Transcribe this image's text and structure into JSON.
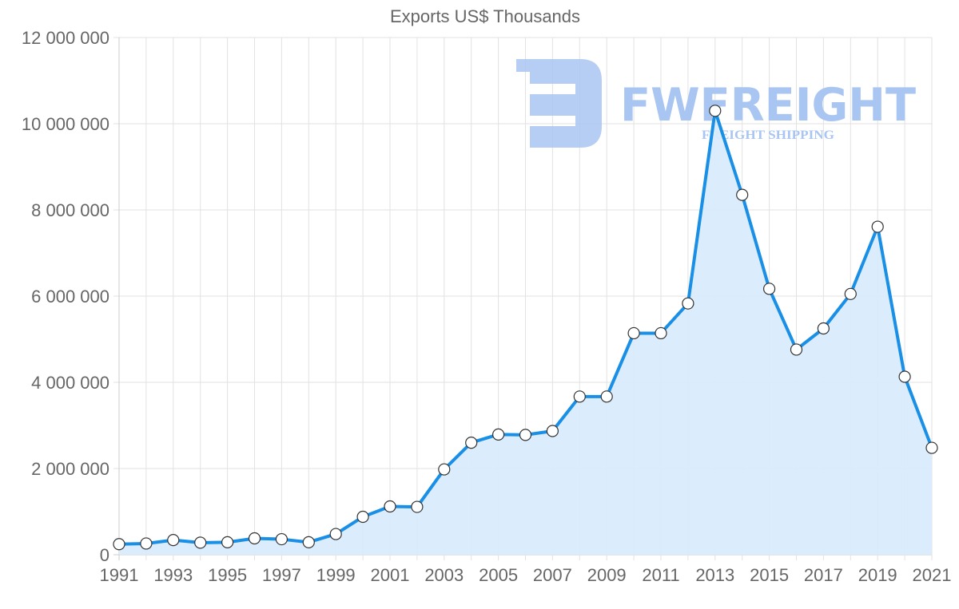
{
  "title": "Exports US$ Thousands",
  "watermark": {
    "brand": "FWFREIGHT",
    "tagline": "FREIGHT SHIPPING",
    "color": "#a9c5f1"
  },
  "colors": {
    "line": "#1a8fe6",
    "fill": "#d9ecfc",
    "grid": "#e2e2e2",
    "axis": "#cccccc",
    "tick_text": "#666666",
    "point_fill": "#ffffff",
    "point_stroke": "#333333"
  },
  "chart_data": {
    "type": "area",
    "title": "Exports US$ Thousands",
    "xlabel": "",
    "ylabel": "",
    "ylim": [
      0,
      12000000
    ],
    "y_ticks": [
      0,
      2000000,
      4000000,
      6000000,
      8000000,
      10000000,
      12000000
    ],
    "y_tick_labels": [
      "0",
      "2 000 000",
      "4 000 000",
      "6 000 000",
      "8 000 000",
      "10 000 000",
      "12 000 000"
    ],
    "x_tick_labels": [
      "1991",
      "1993",
      "1995",
      "1997",
      "1999",
      "2001",
      "2003",
      "2005",
      "2007",
      "2009",
      "2011",
      "2013",
      "2015",
      "2017",
      "2019",
      "2021"
    ],
    "grid": true,
    "legend": "none",
    "categories": [
      "1991",
      "1992",
      "1993",
      "1994",
      "1995",
      "1996",
      "1997",
      "1998",
      "1999",
      "2000",
      "2001",
      "2002",
      "2003",
      "2004",
      "2005",
      "2006",
      "2007",
      "2008",
      "2009",
      "2010",
      "2011",
      "2012",
      "2013",
      "2014",
      "2015",
      "2016",
      "2017",
      "2018",
      "2019",
      "2020",
      "2021"
    ],
    "series": [
      {
        "name": "Exports US$ Thousands",
        "values": [
          246000,
          260000,
          340000,
          280000,
          290000,
          380000,
          360000,
          290000,
          480000,
          880000,
          1120000,
          1110000,
          1980000,
          2600000,
          2790000,
          2780000,
          2870000,
          3670000,
          3670000,
          5140000,
          5140000,
          5830000,
          10300000,
          8350000,
          6170000,
          4760000,
          5250000,
          6050000,
          7610000,
          4130000,
          2480000
        ]
      }
    ]
  }
}
